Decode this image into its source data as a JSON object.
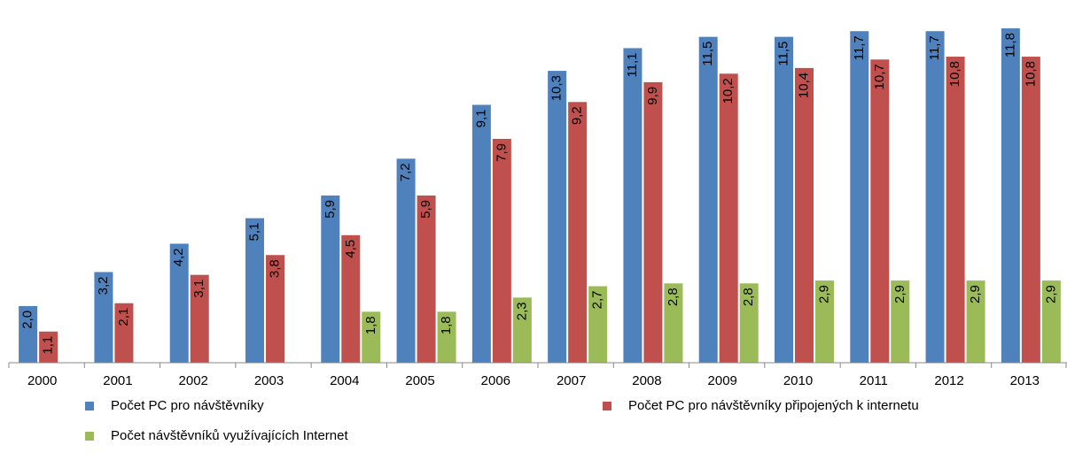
{
  "chart_data": {
    "type": "bar",
    "categories": [
      "2000",
      "2001",
      "2002",
      "2003",
      "2004",
      "2005",
      "2006",
      "2007",
      "2008",
      "2009",
      "2010",
      "2011",
      "2012",
      "2013"
    ],
    "series": [
      {
        "name": "Počet PC pro návštěvníky",
        "color": "#4f81bd",
        "values": [
          2.0,
          3.2,
          4.2,
          5.1,
          5.9,
          7.2,
          9.1,
          10.3,
          11.1,
          11.5,
          11.5,
          11.7,
          11.7,
          11.8
        ],
        "value_labels": [
          "2,0",
          "3,2",
          "4,2",
          "5,1",
          "5,9",
          "7,2",
          "9,1",
          "10,3",
          "11,1",
          "11,5",
          "11,5",
          "11,7",
          "11,7",
          "11,8"
        ]
      },
      {
        "name": "Počet PC pro návštěvníky připojených k internetu",
        "color": "#c0504d",
        "values": [
          1.1,
          2.1,
          3.1,
          3.8,
          4.5,
          5.9,
          7.9,
          9.2,
          9.9,
          10.2,
          10.4,
          10.7,
          10.8,
          10.8
        ],
        "value_labels": [
          "1,1",
          "2,1",
          "3,1",
          "3,8",
          "4,5",
          "5,9",
          "7,9",
          "9,2",
          "9,9",
          "10,2",
          "10,4",
          "10,7",
          "10,8",
          "10,8"
        ]
      },
      {
        "name": "Počet návštěvníků využívajících Internet",
        "color": "#9bbb59",
        "values": [
          null,
          null,
          null,
          null,
          1.8,
          1.8,
          2.3,
          2.7,
          2.8,
          2.8,
          2.9,
          2.9,
          2.9,
          2.9
        ],
        "value_labels": [
          null,
          null,
          null,
          null,
          "1,8",
          "1,8",
          "2,3",
          "2,7",
          "2,8",
          "2,8",
          "2,9",
          "2,9",
          "2,9",
          "2,9"
        ]
      }
    ],
    "ylim": [
      0,
      12.8
    ],
    "legend": "bottom"
  }
}
